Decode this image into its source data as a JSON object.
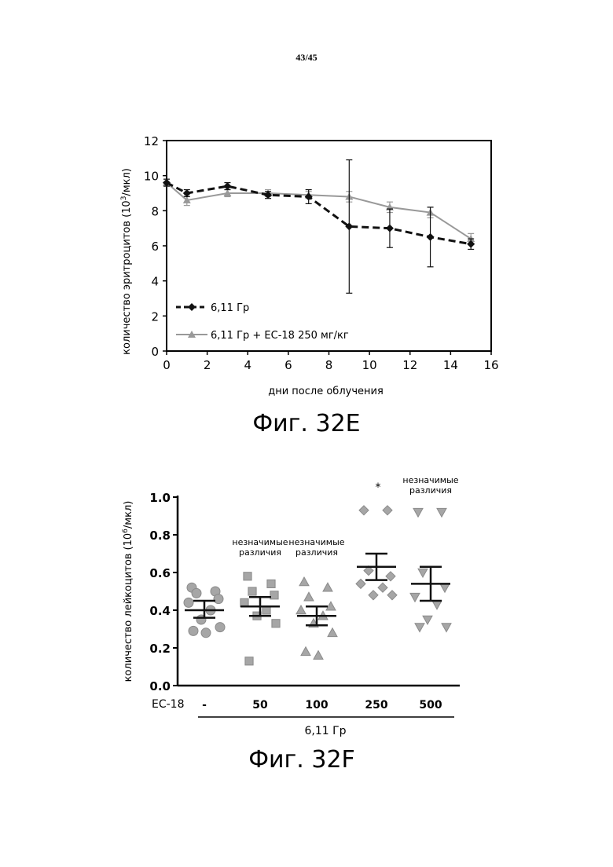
{
  "page_number": "43/45",
  "chart_data": [
    {
      "type": "line",
      "caption": "Фиг. 32E",
      "xlabel": "дни после облучения",
      "ylabel": "количество эритроцитов (10",
      "ylabel_sup": "3",
      "ylabel_tail": "/мкл)",
      "xlim": [
        0,
        16
      ],
      "ylim": [
        0,
        12
      ],
      "xticks": [
        "0",
        "2",
        "4",
        "6",
        "8",
        "10",
        "12",
        "14",
        "16"
      ],
      "yticks": [
        "0",
        "2",
        "4",
        "6",
        "8",
        "10",
        "12"
      ],
      "grid": false,
      "legend_position": "bottom-left",
      "series": [
        {
          "name": "6,11 Гр",
          "color": "#111111",
          "marker": "diamond",
          "line_style": "dashed",
          "x": [
            0,
            1,
            3,
            5,
            7,
            9,
            11,
            13,
            15
          ],
          "y": [
            9.6,
            9.0,
            9.4,
            8.9,
            8.8,
            7.1,
            7.0,
            6.5,
            6.1
          ],
          "error": [
            0.2,
            0.2,
            0.2,
            0.2,
            0.4,
            3.8,
            1.1,
            1.7,
            0.3
          ]
        },
        {
          "name": "6,11 Гр + EC-18 250 мг/кг",
          "color": "#999999",
          "marker": "triangle",
          "line_style": "solid",
          "x": [
            0,
            1,
            3,
            5,
            7,
            9,
            11,
            13,
            15
          ],
          "y": [
            9.6,
            8.6,
            9.0,
            9.0,
            8.9,
            8.8,
            8.2,
            7.9,
            6.4
          ],
          "error": [
            0.2,
            0.3,
            0.2,
            0.2,
            0.2,
            0.3,
            0.3,
            0.3,
            0.3
          ]
        }
      ]
    },
    {
      "type": "scatter",
      "caption": "Фиг. 32F",
      "ylabel": "количество лейкоцитов (10",
      "ylabel_sup": "6",
      "ylabel_tail": "/мкл)",
      "ylim": [
        0,
        1.0
      ],
      "yticks": [
        "0.0",
        "0.2",
        "0.4",
        "0.6",
        "0.8",
        "1.0"
      ],
      "row_label": "EC-18",
      "categories": [
        "-",
        "50",
        "100",
        "250",
        "500"
      ],
      "group_label": "6,11 Гр",
      "grid": false,
      "groups": [
        {
          "marker": "circle",
          "annotation": [],
          "points": [
            0.52,
            0.5,
            0.49,
            0.46,
            0.44,
            0.4,
            0.35,
            0.31,
            0.29,
            0.28
          ],
          "mean": 0.4,
          "sem_lower": 0.36,
          "sem_upper": 0.45
        },
        {
          "marker": "square",
          "annotation": [
            "незначимые",
            "различия"
          ],
          "points": [
            0.58,
            0.54,
            0.5,
            0.48,
            0.44,
            0.4,
            0.37,
            0.33,
            0.13
          ],
          "mean": 0.42,
          "sem_lower": 0.37,
          "sem_upper": 0.47
        },
        {
          "marker": "triangle-up",
          "annotation": [
            "незначимые",
            "различия"
          ],
          "points": [
            0.55,
            0.52,
            0.47,
            0.42,
            0.4,
            0.37,
            0.33,
            0.28,
            0.18,
            0.16
          ],
          "mean": 0.37,
          "sem_lower": 0.32,
          "sem_upper": 0.42
        },
        {
          "marker": "diamond",
          "annotation": [
            "*"
          ],
          "points": [
            0.93,
            0.93,
            0.61,
            0.58,
            0.54,
            0.52,
            0.48,
            0.48
          ],
          "mean": 0.63,
          "sem_lower": 0.56,
          "sem_upper": 0.7
        },
        {
          "marker": "triangle-down",
          "annotation": [
            "незначимые",
            "различия"
          ],
          "points": [
            0.92,
            0.92,
            0.6,
            0.52,
            0.47,
            0.43,
            0.35,
            0.31,
            0.31
          ],
          "mean": 0.54,
          "sem_lower": 0.45,
          "sem_upper": 0.63
        }
      ]
    }
  ]
}
